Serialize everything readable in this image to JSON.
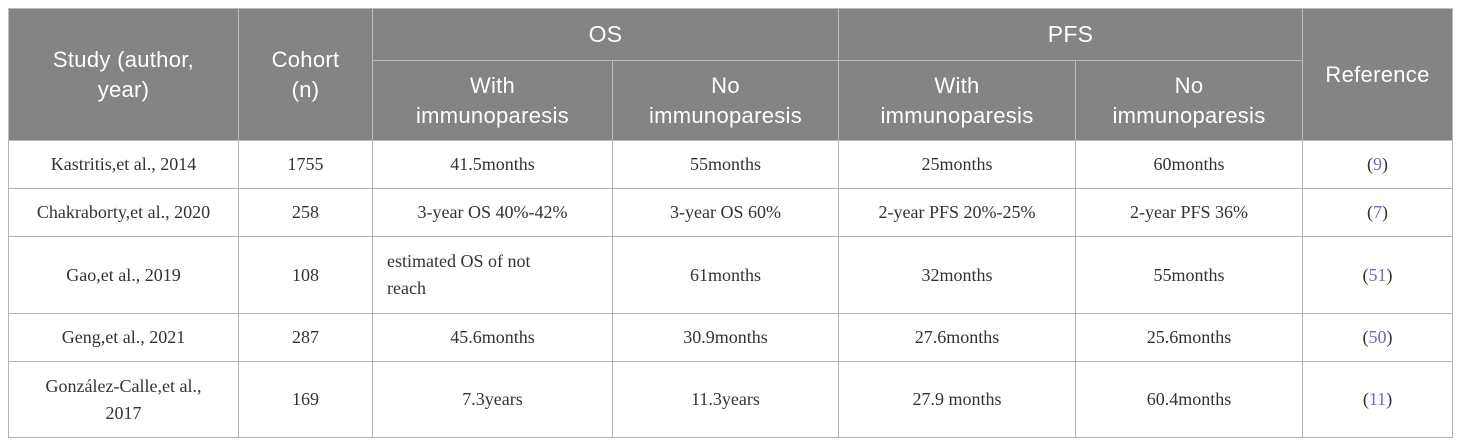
{
  "colors": {
    "header_bg": "#848484",
    "header_text": "#ffffff",
    "header_divider": "#bcbcbc",
    "body_text": "#333333",
    "cell_border": "#b3b3b3",
    "reference_link": "#6f6cb3",
    "page_bg": "#ffffff"
  },
  "table": {
    "header": {
      "study": "Study (author,\nyear)",
      "cohort": "Cohort\n(n)",
      "os": "OS",
      "pfs": "PFS",
      "with_immunoparesis": "With\nimmunoparesis",
      "no_immunoparesis": "No\nimmunoparesis",
      "reference": "Reference"
    },
    "reference_format": {
      "open": "(",
      "close": ")"
    },
    "rows": [
      {
        "study": "Kastritis,et al., 2014",
        "cohort": "1755",
        "os_with": "41.5months",
        "os_no": "55months",
        "pfs_with": "25months",
        "pfs_no": "60months",
        "reference": "9"
      },
      {
        "study": "Chakraborty,et al., 2020",
        "cohort": "258",
        "os_with": "3-year OS 40%-42%",
        "os_no": "3-year OS 60%",
        "pfs_with": "2-year PFS 20%-25%",
        "pfs_no": "2-year PFS 36%",
        "reference": "7"
      },
      {
        "study": "Gao,et al., 2019",
        "cohort": "108",
        "os_with": "estimated OS of not\nreach",
        "os_no": "61months",
        "pfs_with": "32months",
        "pfs_no": "55months",
        "reference": "51",
        "align": {
          "os_with": "left"
        }
      },
      {
        "study": "Geng,et al., 2021",
        "cohort": "287",
        "os_with": "45.6months",
        "os_no": "30.9months",
        "pfs_with": "27.6months",
        "pfs_no": "25.6months",
        "reference": "50"
      },
      {
        "study": "González-Calle,et al.,\n2017",
        "cohort": "169",
        "os_with": "7.3years",
        "os_no": "11.3years",
        "pfs_with": "27.9 months",
        "pfs_no": "60.4months",
        "reference": "11"
      }
    ]
  }
}
